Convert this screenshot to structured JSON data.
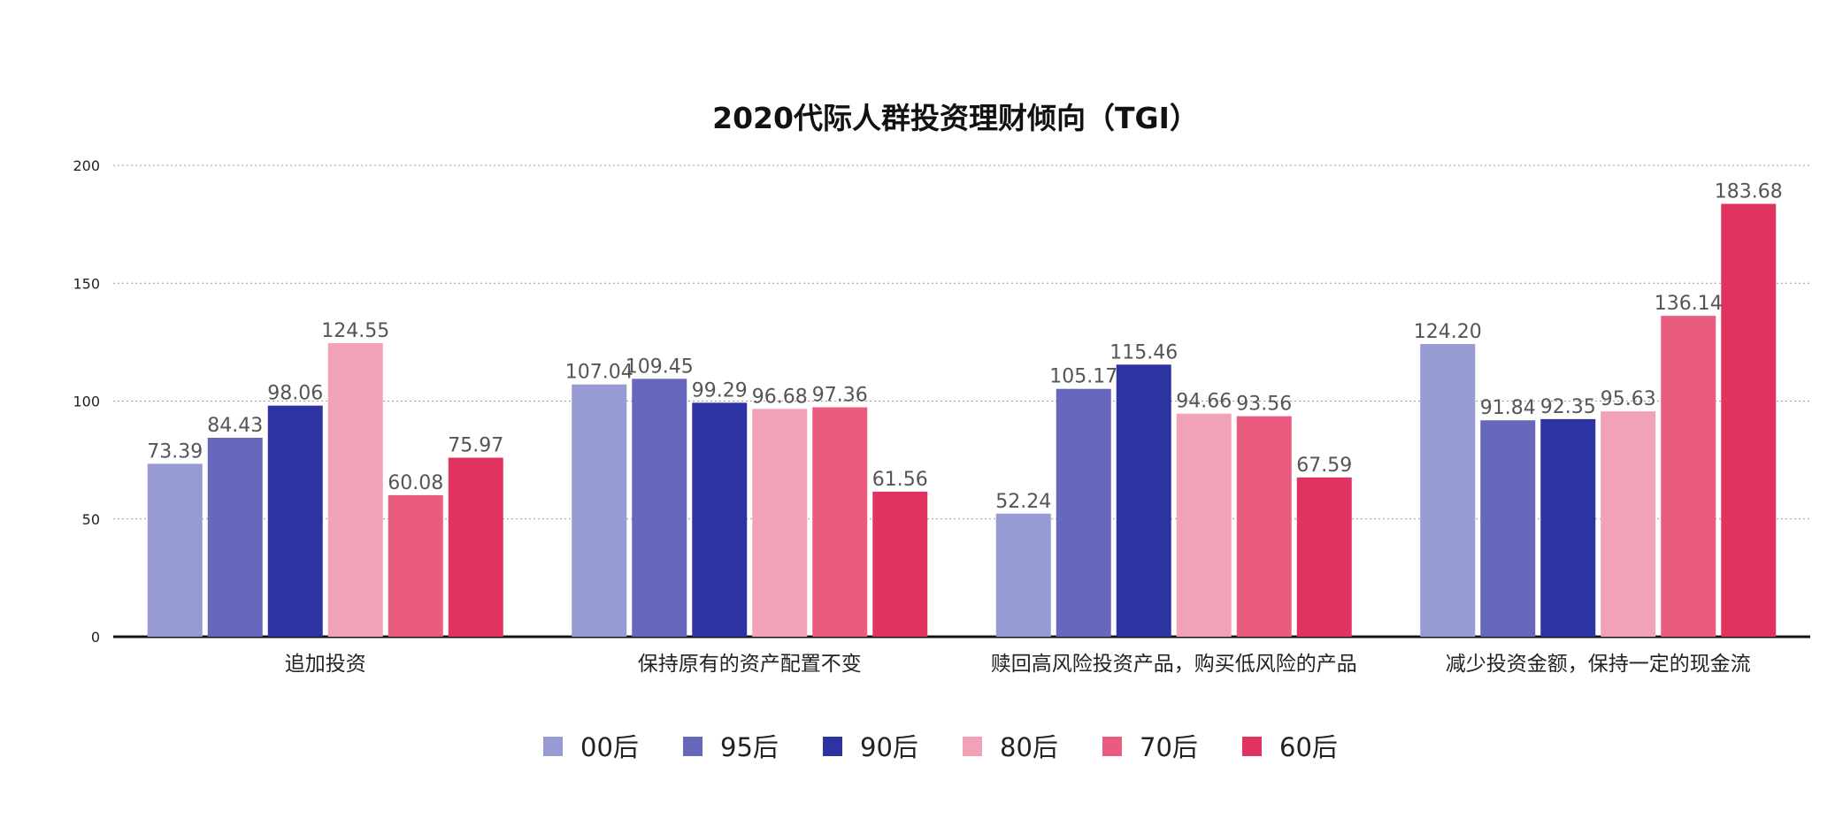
{
  "chart_data": {
    "type": "bar",
    "title": "2020代际人群投资理财倾向（TGI）",
    "categories": [
      "追加投资",
      "保持原有的资产配置不变",
      "赎回高风险投资产品，购买低风险的产品",
      "减少投资金额，保持一定的现金流"
    ],
    "series": [
      {
        "name": "00后",
        "color": "#989bd3",
        "values": [
          73.39,
          107.04,
          52.24,
          124.2
        ]
      },
      {
        "name": "95后",
        "color": "#6768bc",
        "values": [
          84.43,
          109.45,
          105.17,
          91.84
        ]
      },
      {
        "name": "90后",
        "color": "#2e33a2",
        "values": [
          98.06,
          99.29,
          115.46,
          92.35
        ]
      },
      {
        "name": "80后",
        "color": "#f2a2b6",
        "values": [
          124.55,
          96.68,
          94.66,
          95.63
        ]
      },
      {
        "name": "70后",
        "color": "#e95b7f",
        "values": [
          60.08,
          97.36,
          93.56,
          136.14
        ]
      },
      {
        "name": "60后",
        "color": "#e1335f",
        "values": [
          75.97,
          61.56,
          67.59,
          183.68
        ]
      }
    ],
    "ylim": [
      0,
      200
    ],
    "yticks": [
      0,
      50,
      100,
      150,
      200
    ],
    "grid": true,
    "legend_position": "bottom-center"
  }
}
